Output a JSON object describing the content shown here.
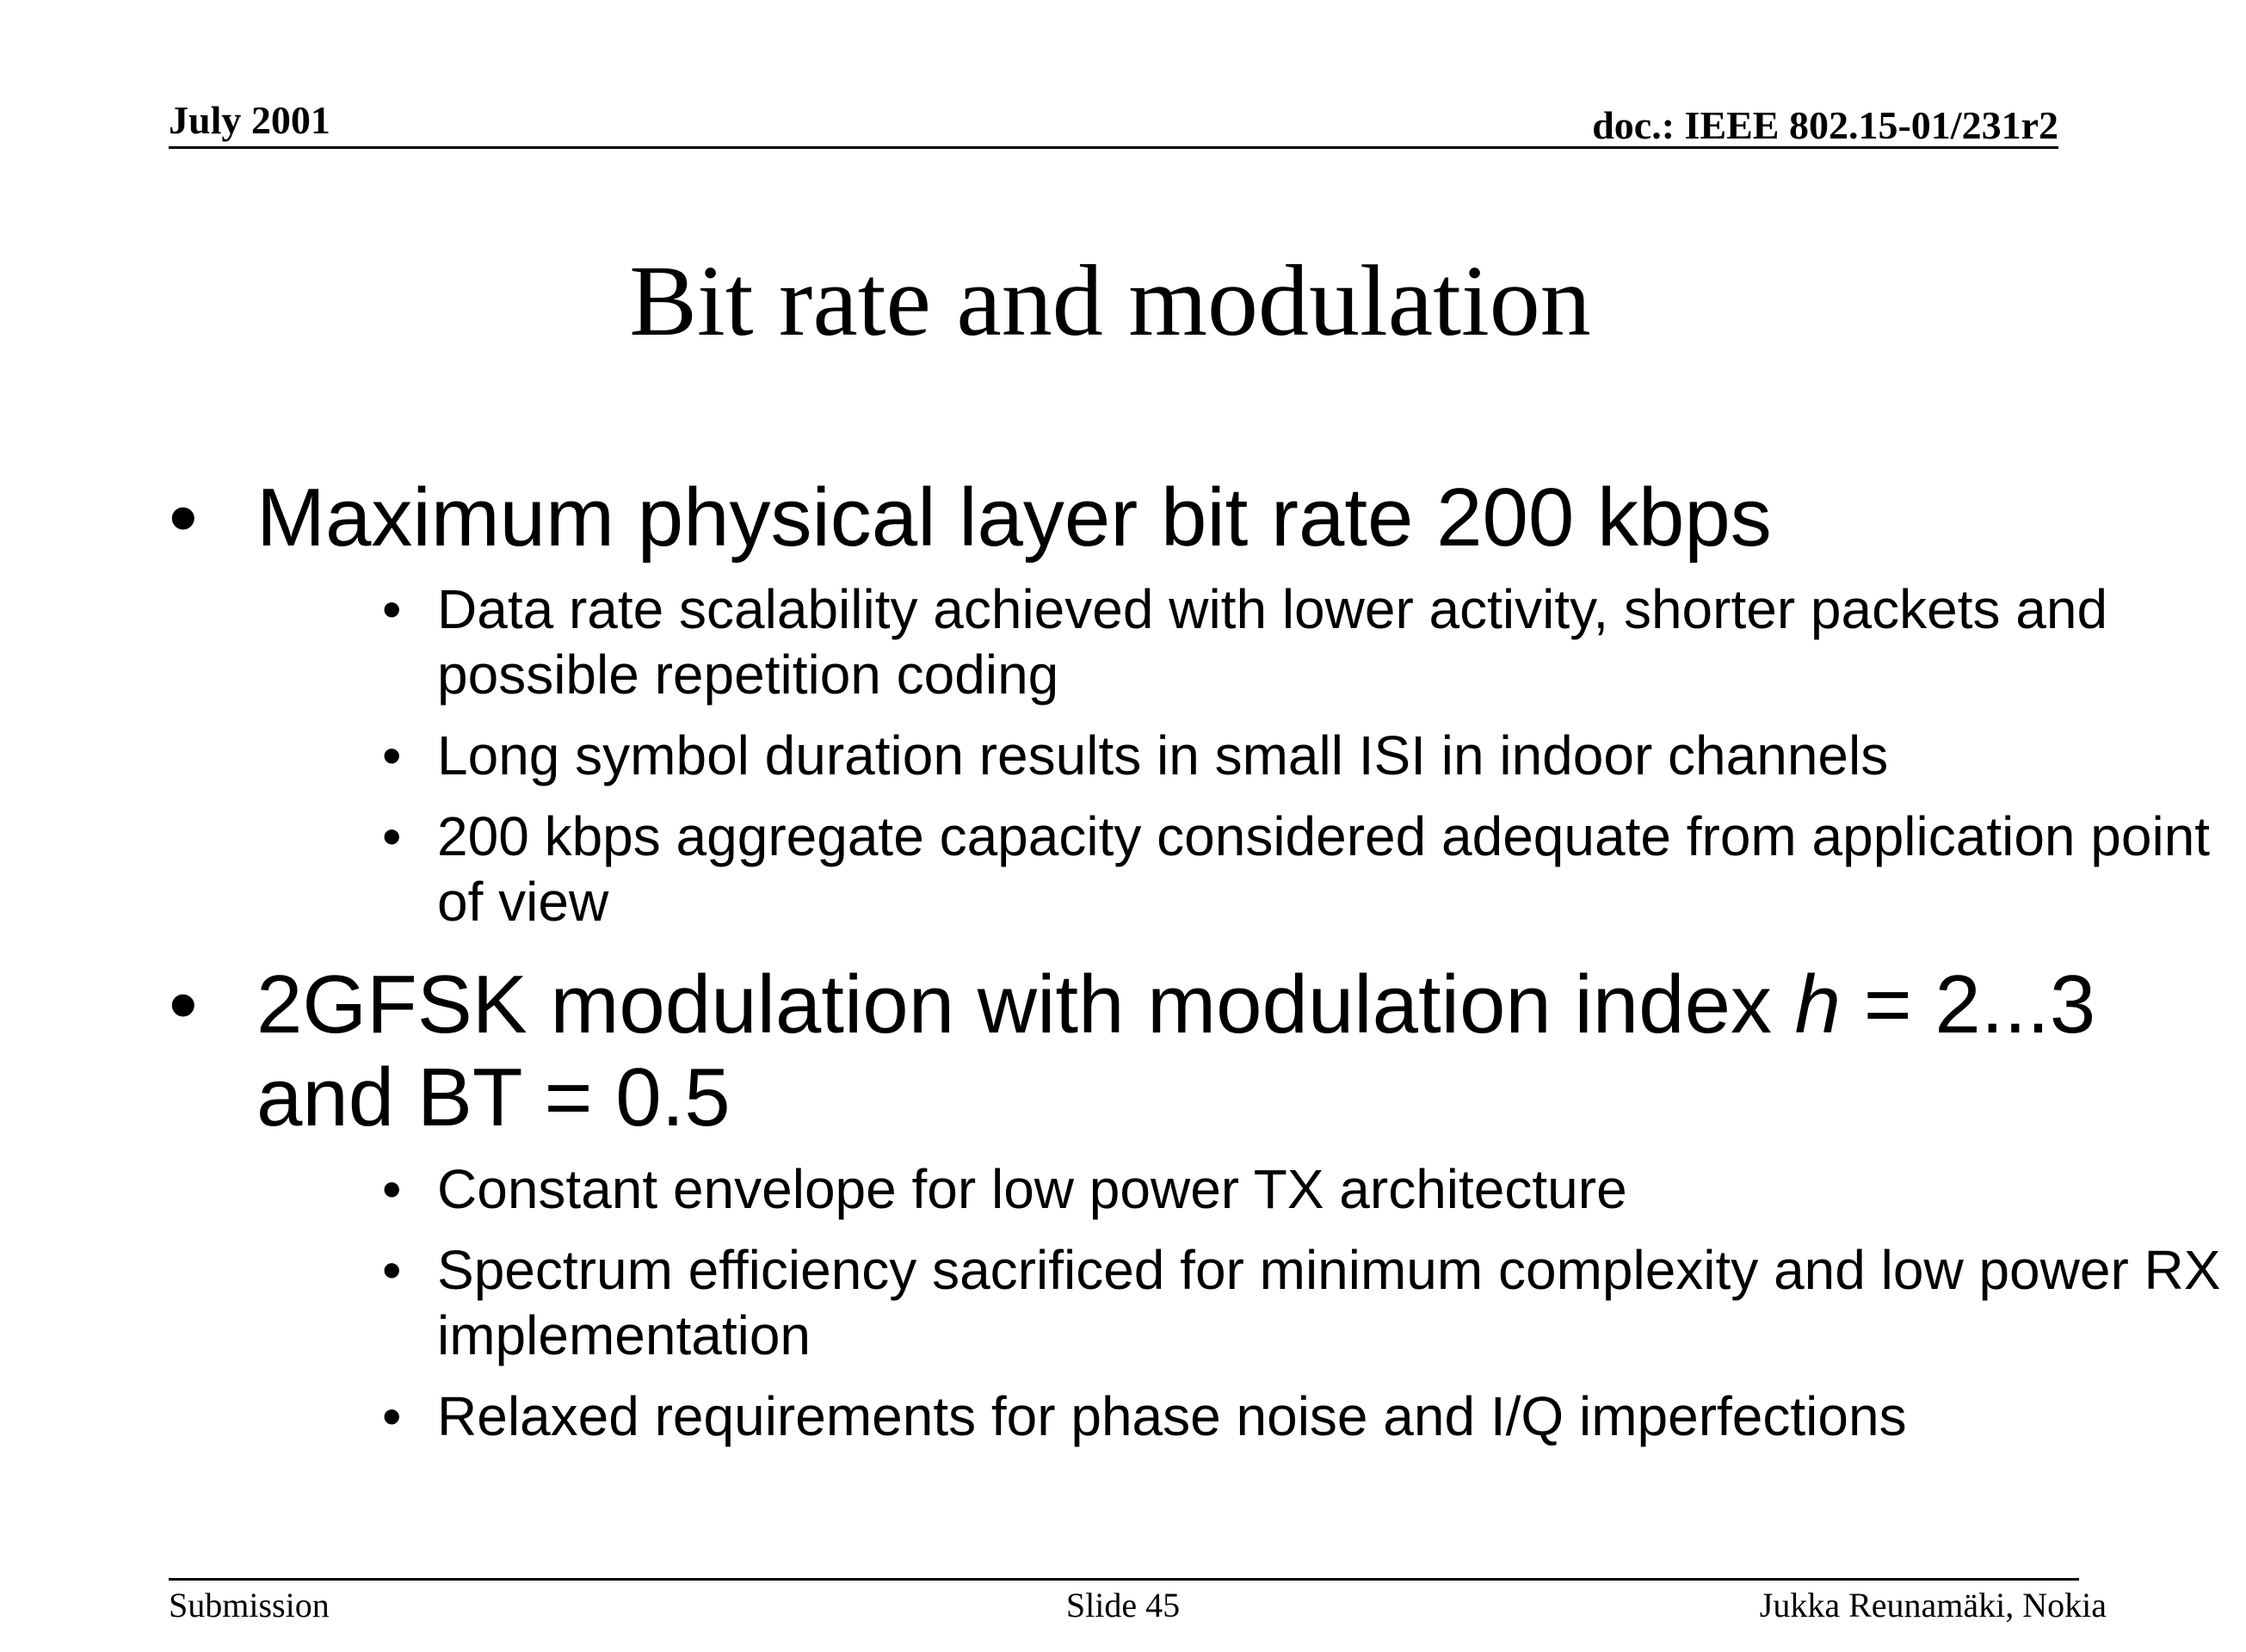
{
  "header": {
    "date": "July 2001",
    "doc_id": "doc.: IEEE 802.15-01/231r2"
  },
  "slide": {
    "title": "Bit rate and modulation",
    "bullets": [
      {
        "text": "Maximum physical layer bit rate 200 kbps",
        "sub": [
          "Data rate scalability achieved with lower activity, shorter packets and possible repetition coding",
          "Long symbol duration results in small ISI in indoor channels",
          "200 kbps aggregate capacity considered adequate from application point of view"
        ]
      },
      {
        "text_before_italic": "2GFSK modulation with modulation index ",
        "italic": "h",
        "text_after_italic": " = 2...3 and BT = 0.5",
        "sub": [
          "Constant envelope for low power TX architecture",
          "Spectrum efficiency sacrificed for minimum complexity and low power RX implementation",
          "Relaxed requirements for phase noise and I/Q imperfections"
        ]
      }
    ],
    "bullet_glyph": "•"
  },
  "footer": {
    "left": "Submission",
    "center": "Slide 45",
    "right": "Jukka Reunamäki, Nokia"
  }
}
